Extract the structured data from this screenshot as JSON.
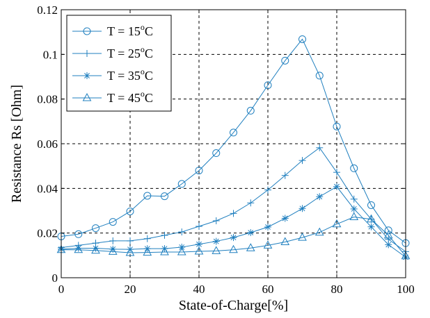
{
  "chart_data": {
    "type": "line",
    "title": "",
    "xlabel": "State-of-Charge[%]",
    "ylabel": "Resistance Rs  [Ohm]",
    "xlim": [
      0,
      100
    ],
    "ylim": [
      0,
      0.12
    ],
    "xticks": [
      0,
      20,
      40,
      60,
      80,
      100
    ],
    "yticks": [
      0,
      0.02,
      0.04,
      0.06,
      0.08,
      0.1,
      0.12
    ],
    "xtick_labels": [
      "0",
      "20",
      "40",
      "60",
      "80",
      "100"
    ],
    "ytick_labels": [
      "0",
      "0.02",
      "0.04",
      "0.06",
      "0.08",
      "0.1",
      "0.12"
    ],
    "grid": true,
    "legend_position": "top-left",
    "line_color": "#1f7fbf",
    "x": [
      0,
      5,
      10,
      15,
      20,
      25,
      30,
      35,
      40,
      45,
      50,
      55,
      60,
      65,
      70,
      75,
      80,
      85,
      90,
      95,
      100
    ],
    "series": [
      {
        "name": "T = 15",
        "name_sup": "o",
        "name_suffix": "C",
        "marker": "circle",
        "values": [
          0.0185,
          0.0195,
          0.0222,
          0.025,
          0.0297,
          0.0367,
          0.0365,
          0.042,
          0.048,
          0.0558,
          0.065,
          0.0748,
          0.0862,
          0.0972,
          0.1068,
          0.0905,
          0.0677,
          0.049,
          0.0325,
          0.0212,
          0.0155
        ]
      },
      {
        "name": "T = 25",
        "name_sup": "o",
        "name_suffix": "C",
        "marker": "plus",
        "values": [
          0.0135,
          0.0145,
          0.0155,
          0.0165,
          0.0165,
          0.0175,
          0.019,
          0.0205,
          0.023,
          0.0255,
          0.0288,
          0.0335,
          0.0393,
          0.0458,
          0.0525,
          0.0582,
          0.0472,
          0.0352,
          0.0262,
          0.0172,
          0.0117
        ]
      },
      {
        "name": "T = 35",
        "name_sup": "o",
        "name_suffix": "C",
        "marker": "star",
        "values": [
          0.0128,
          0.0132,
          0.0132,
          0.0128,
          0.0127,
          0.013,
          0.013,
          0.0137,
          0.015,
          0.0163,
          0.018,
          0.0202,
          0.0227,
          0.0266,
          0.031,
          0.0363,
          0.0408,
          0.0308,
          0.0228,
          0.0148,
          0.0092
        ]
      },
      {
        "name": "T = 45",
        "name_sup": "o",
        "name_suffix": "C",
        "marker": "triangle",
        "values": [
          0.0125,
          0.0125,
          0.0122,
          0.0117,
          0.0112,
          0.0113,
          0.0115,
          0.0115,
          0.0118,
          0.012,
          0.0125,
          0.0133,
          0.0145,
          0.016,
          0.018,
          0.0203,
          0.024,
          0.0272,
          0.0262,
          0.019,
          0.0097
        ]
      }
    ]
  }
}
